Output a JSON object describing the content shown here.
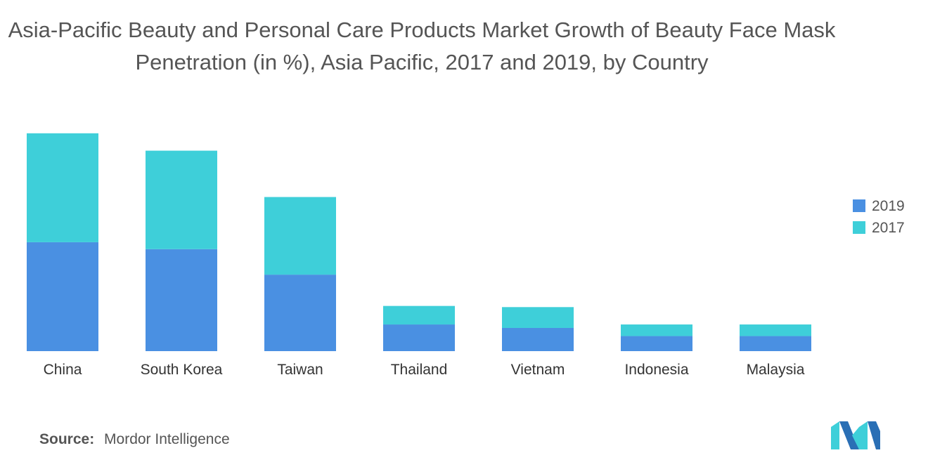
{
  "chart_data": {
    "type": "bar",
    "stacked": true,
    "title_lines": [
      "Asia-Pacific Beauty and Personal Care Products Market Growth of Beauty Face Mask",
      "Penetration (in %), Asia Pacific, 2017 and 2019, by Country"
    ],
    "categories": [
      "China",
      "South Korea",
      "Taiwan",
      "Thailand",
      "Vietnam",
      "Indonesia",
      "Malaysia"
    ],
    "series": [
      {
        "name": "2019",
        "color": "#4a90e2",
        "values": [
          47,
          44,
          33,
          11.5,
          10,
          6.5,
          6.5
        ]
      },
      {
        "name": "2017",
        "color": "#3ecfd9",
        "values": [
          47,
          42.5,
          33.5,
          8,
          9,
          5,
          5
        ]
      }
    ],
    "ylim": [
      0,
      100
    ],
    "grid": false,
    "legend_position": "right",
    "xlabel": "",
    "ylabel": ""
  },
  "source": {
    "label": "Source:",
    "text": "Mordor Intelligence"
  }
}
